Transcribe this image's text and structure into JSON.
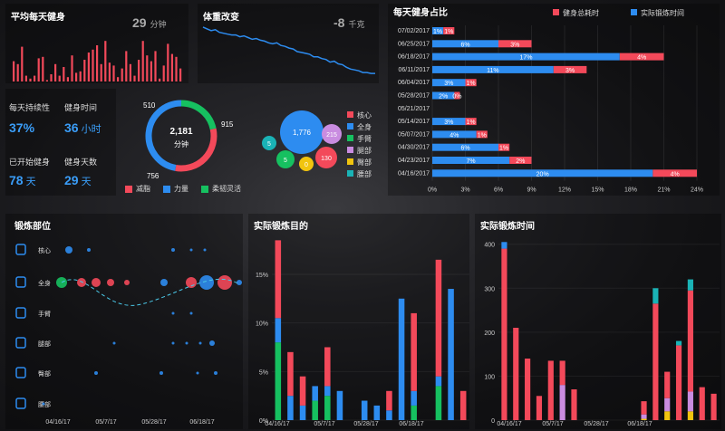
{
  "colors": {
    "red": "#f3495a",
    "blue": "#2d8cf0",
    "green": "#16c060",
    "purple": "#c98ce0",
    "yellow": "#f1c40f",
    "cyan": "#1ab3b6"
  },
  "avg_daily": {
    "title": "平均每天健身",
    "value": "29",
    "unit": "分钟",
    "values": [
      14,
      12,
      24,
      4,
      2,
      4,
      16,
      17,
      1,
      5,
      12,
      4,
      10,
      3,
      18,
      6,
      7,
      15,
      20,
      22,
      25,
      12,
      28,
      13,
      11,
      3,
      9,
      21,
      12,
      4,
      15,
      28,
      18,
      14,
      21,
      2,
      11,
      26,
      19,
      17,
      9
    ]
  },
  "weight": {
    "title": "体重改变",
    "value": "-8",
    "unit": "千克",
    "values": [
      52,
      51,
      50,
      50.5,
      49,
      48.5,
      48,
      47.5,
      47.5,
      46.5,
      47,
      46,
      45,
      45.5,
      44.5,
      44,
      43,
      42.5,
      43,
      41.5,
      41,
      40,
      39.5,
      38,
      37.5,
      37,
      36.5,
      35,
      35,
      34,
      33.5,
      32,
      32.5,
      31,
      30.5,
      29,
      28,
      27.5,
      27,
      26,
      26,
      25.5,
      25.5
    ]
  },
  "kpis": [
    {
      "label": "每天持续性",
      "value": "37%",
      "unit": ""
    },
    {
      "label": "健身时间",
      "value": "36",
      "unit": "小时"
    },
    {
      "label": "已开始健身",
      "value": "78",
      "unit": "天"
    },
    {
      "label": "健身天数",
      "value": "29",
      "unit": "天"
    }
  ],
  "donut": {
    "total": "2,181",
    "center_label": "分钟",
    "labels": [
      "510",
      "915",
      "756"
    ],
    "legend": [
      "减脂",
      "力量",
      "柔韧灵活"
    ]
  },
  "bubbles": {
    "values": [
      {
        "v": "1,776",
        "c": "blue"
      },
      {
        "v": "215",
        "c": "purple"
      },
      {
        "v": "130",
        "c": "red"
      },
      {
        "v": "5",
        "c": "cyan"
      },
      {
        "v": "5",
        "c": "green"
      },
      {
        "v": "0",
        "c": "yellow"
      }
    ],
    "legend": [
      {
        "name": "核心",
        "c": "red"
      },
      {
        "name": "全身",
        "c": "blue"
      },
      {
        "name": "手臂",
        "c": "green"
      },
      {
        "name": "腿部",
        "c": "purple"
      },
      {
        "name": "臀部",
        "c": "yellow"
      },
      {
        "name": "腰部",
        "c": "cyan"
      }
    ]
  },
  "chart_data": [
    {
      "type": "bar",
      "title": "每天健身占比",
      "orientation": "horizontal",
      "legend": [
        "健身总耗时",
        "实际锻炼时间"
      ],
      "categories": [
        "07/02/2017",
        "06/25/2017",
        "06/18/2017",
        "06/11/2017",
        "06/04/2017",
        "05/28/2017",
        "05/21/2017",
        "05/14/2017",
        "05/07/2017",
        "04/30/2017",
        "04/23/2017",
        "04/16/2017"
      ],
      "series": [
        {
          "name": "实际锻炼时间",
          "values": [
            1,
            6,
            17,
            11,
            3,
            2,
            0,
            3,
            4,
            6,
            7,
            20
          ],
          "labels": [
            "1%",
            "6%",
            "17%",
            "11%",
            "3%",
            "2%",
            "",
            "3%",
            "4%",
            "6%",
            "7%",
            "20%"
          ]
        },
        {
          "name": "健身总耗时",
          "values": [
            1,
            3,
            4,
            3,
            1,
            0.5,
            0,
            1,
            1,
            1,
            2,
            4
          ],
          "labels": [
            "1%",
            "3%",
            "4%",
            "3%",
            "1%",
            "0%",
            "",
            "1%",
            "1%",
            "1%",
            "2%",
            "4%"
          ]
        }
      ],
      "xticks": [
        "0%",
        "3%",
        "6%",
        "9%",
        "12%",
        "15%",
        "18%",
        "21%",
        "24%"
      ],
      "xlim": [
        0,
        24
      ]
    },
    {
      "type": "scatter",
      "title": "锻炼部位",
      "categories": [
        "核心",
        "全身",
        "手臂",
        "腿部",
        "臀部",
        "腰部"
      ],
      "xticks": [
        "04/16/17",
        "05/7/17",
        "05/28/17",
        "06/18/17"
      ]
    },
    {
      "type": "bar",
      "stacked": true,
      "title": "实际锻炼目的",
      "yticks": [
        "15%",
        "10%",
        "5%",
        "0%"
      ],
      "xticks": [
        "04/16/17",
        "05/7/17",
        "05/28/17",
        "06/18/17"
      ],
      "series": [
        {
          "color": "green",
          "values": [
            8,
            0,
            0,
            2,
            2.5,
            0,
            0,
            0,
            0,
            0,
            0,
            1.5,
            0,
            3.5,
            0,
            0
          ]
        },
        {
          "color": "blue",
          "values": [
            2.5,
            2.5,
            1.5,
            1.5,
            1,
            3,
            0,
            2,
            1.5,
            1,
            12.5,
            1.5,
            0,
            1,
            13.5,
            0
          ]
        },
        {
          "color": "red",
          "values": [
            8,
            4.5,
            3,
            0,
            4,
            0,
            0,
            0,
            0,
            2,
            0,
            8,
            0,
            12,
            0,
            3
          ]
        }
      ],
      "ylim": [
        0,
        19
      ]
    },
    {
      "type": "bar",
      "stacked": true,
      "title": "实际锻炼时间",
      "yticks": [
        "400",
        "300",
        "200",
        "100",
        "0"
      ],
      "xticks": [
        "04/16/17",
        "05/7/17",
        "05/28/17",
        "06/18/17"
      ],
      "series": [
        {
          "color": "yellow",
          "values": [
            0,
            0,
            0,
            0,
            0,
            0,
            0,
            0,
            0,
            0,
            0,
            0,
            3,
            0,
            20,
            0,
            20,
            0,
            0
          ]
        },
        {
          "color": "purple",
          "values": [
            0,
            0,
            0,
            0,
            0,
            80,
            0,
            0,
            0,
            0,
            0,
            0,
            10,
            0,
            30,
            0,
            45,
            0,
            0
          ]
        },
        {
          "color": "red",
          "values": [
            390,
            210,
            140,
            55,
            135,
            55,
            70,
            0,
            0,
            0,
            0,
            0,
            30,
            265,
            60,
            170,
            230,
            75,
            60
          ]
        },
        {
          "color": "blue",
          "values": [
            15,
            0,
            0,
            0,
            0,
            0,
            0,
            0,
            0,
            0,
            0,
            0,
            0,
            0,
            0,
            0,
            0,
            0,
            0
          ]
        },
        {
          "color": "cyan",
          "values": [
            0,
            0,
            0,
            0,
            0,
            0,
            0,
            0,
            0,
            0,
            0,
            0,
            0,
            35,
            0,
            10,
            25,
            0,
            0
          ]
        }
      ],
      "ylim": [
        0,
        420
      ]
    }
  ],
  "body_parts_title": "锻炼部位",
  "purpose_title": "实际锻炼目的",
  "duration_title": "实际锻炼时间"
}
